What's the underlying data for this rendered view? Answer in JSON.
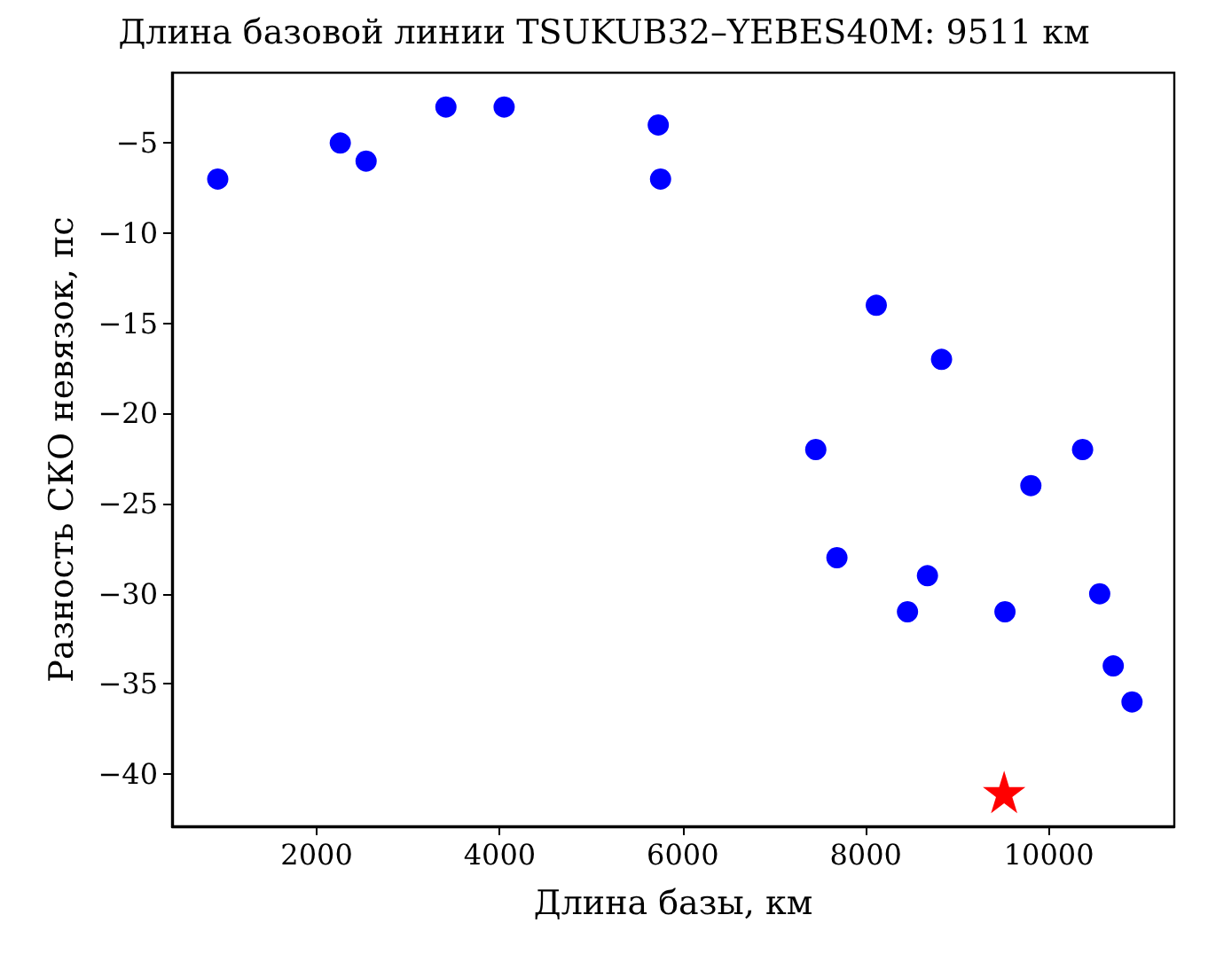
{
  "chart_data": {
    "type": "scatter",
    "title": "Длина базовой линии TSUKUB32–YEBES40M: 9511 км",
    "xlabel": "Длина базы, км",
    "ylabel": "Разность СКО невязок, пс",
    "xlim": [
      420,
      11370
    ],
    "ylim": [
      -42.9,
      -1.1
    ],
    "xticks": [
      2000,
      4000,
      6000,
      8000,
      10000
    ],
    "yticks": [
      -40,
      -35,
      -30,
      -25,
      -20,
      -15,
      -10,
      -5
    ],
    "grid": false,
    "series": [
      {
        "color": "#0000ff",
        "marker": "circle",
        "x": [
          919,
          2258,
          2540,
          3412,
          4048,
          5732,
          5757,
          8114,
          8827,
          7453,
          10368,
          9803,
          7684,
          8673,
          8455,
          9520,
          10555,
          10703,
          10908
        ],
        "values": [
          -7,
          -5,
          -6,
          -3,
          -3,
          -4,
          -7,
          -14,
          -17,
          -22,
          -22,
          -24,
          -28,
          -29,
          -31,
          -31,
          -30,
          -34,
          -36
        ]
      },
      {
        "color": "#ff0000",
        "marker": "star",
        "x": [
          9511
        ],
        "values": [
          -41
        ]
      }
    ]
  }
}
